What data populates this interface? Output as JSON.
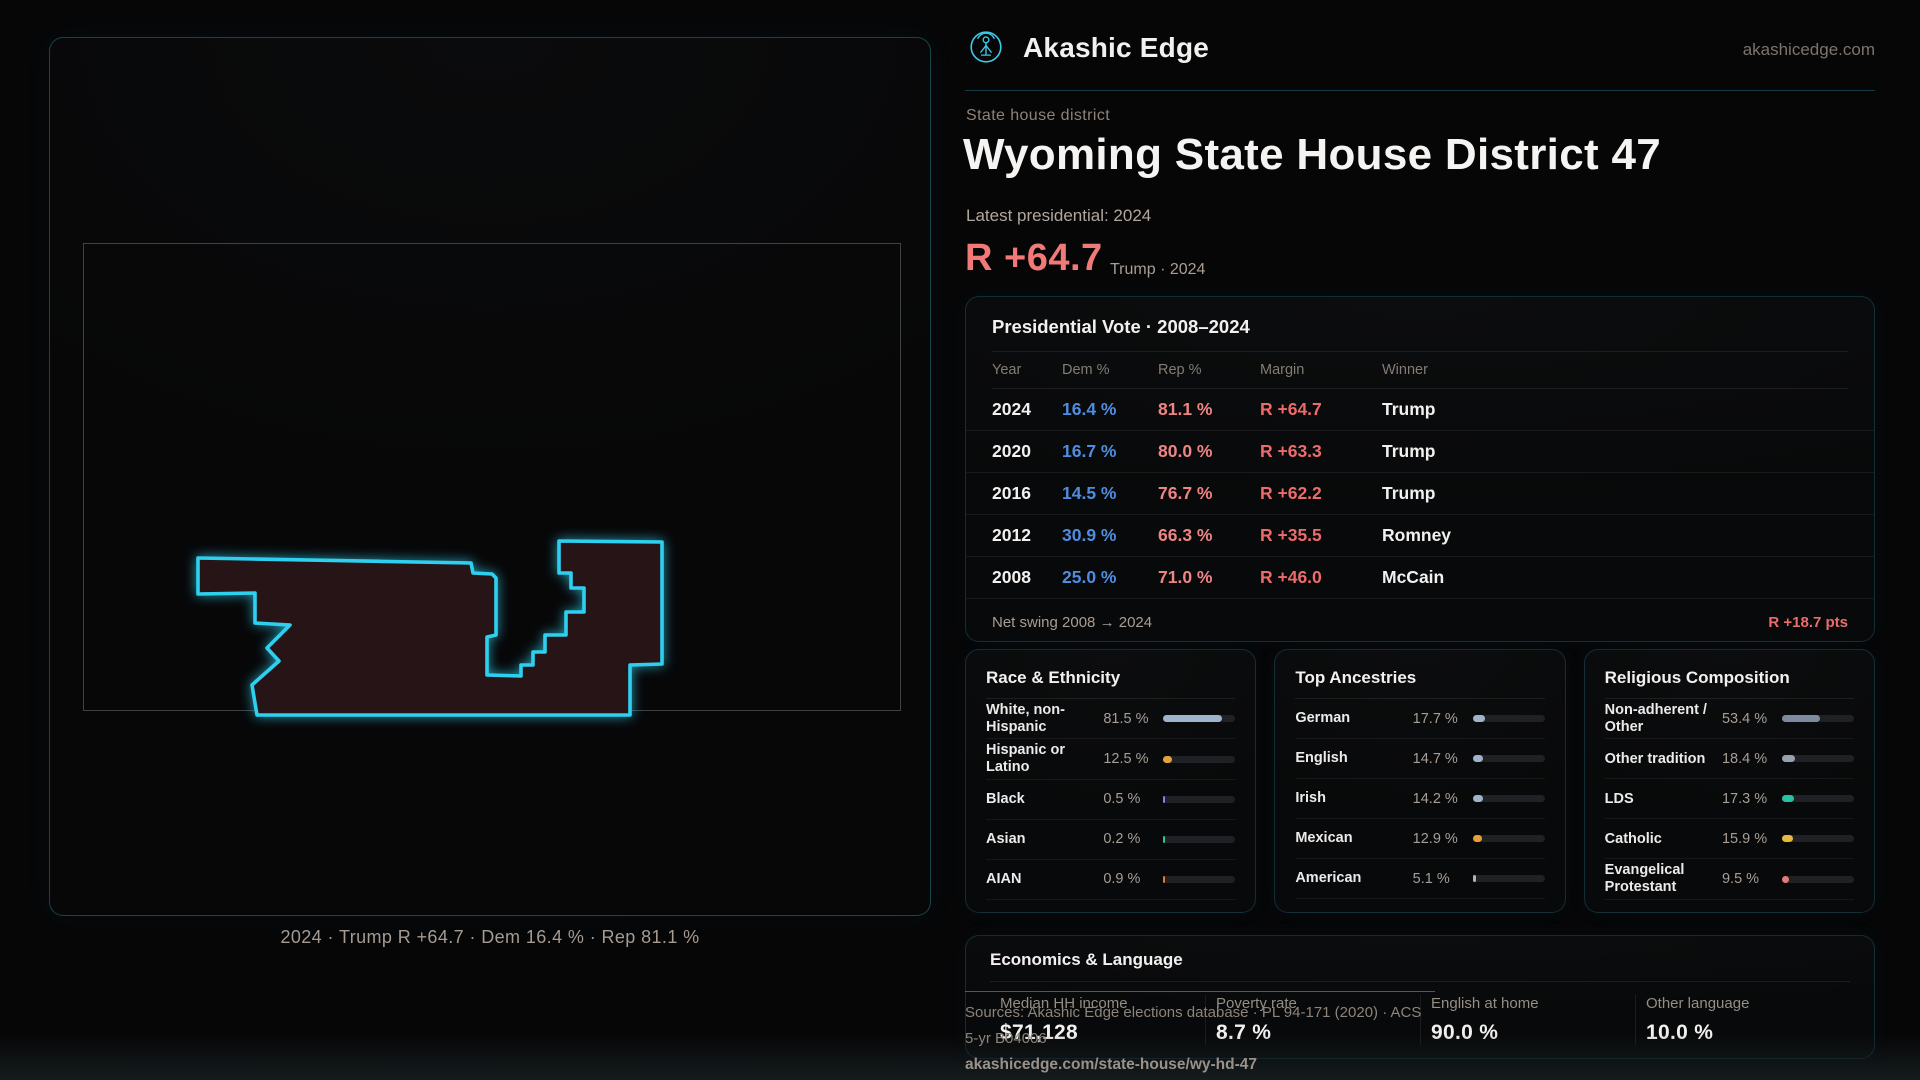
{
  "brand": {
    "name": "Akashic Edge",
    "domain": "akashicedge.com"
  },
  "header": {
    "kicker": "State house district",
    "title": "Wyoming State House District 47",
    "latest": "Latest presidential: 2024",
    "margin": "R +64.7",
    "margin_context": "Trump · 2024"
  },
  "map": {
    "caption": "2024 · Trump R +64.7 · Dem 16.4 % · Rep 81.1 %"
  },
  "vote_table": {
    "title": "Presidential Vote · 2008–2024",
    "columns": [
      "Year",
      "Dem %",
      "Rep %",
      "Margin",
      "Winner"
    ],
    "rows": [
      {
        "year": "2024",
        "dem": "16.4 %",
        "rep": "81.1 %",
        "margin": "R +64.7",
        "winner": "Trump"
      },
      {
        "year": "2020",
        "dem": "16.7 %",
        "rep": "80.0 %",
        "margin": "R +63.3",
        "winner": "Trump"
      },
      {
        "year": "2016",
        "dem": "14.5 %",
        "rep": "76.7 %",
        "margin": "R +62.2",
        "winner": "Trump"
      },
      {
        "year": "2012",
        "dem": "30.9 %",
        "rep": "66.3 %",
        "margin": "R +35.5",
        "winner": "Romney"
      },
      {
        "year": "2008",
        "dem": "25.0 %",
        "rep": "71.0 %",
        "margin": "R +46.0",
        "winner": "McCain"
      }
    ],
    "net_swing_label": "Net swing 2008 → 2024",
    "net_swing_value": "R +18.7 pts"
  },
  "demographics": [
    {
      "key": "race",
      "title": "Race & Ethnicity",
      "items": [
        {
          "label": "White, non-Hispanic",
          "value": "81.5 %",
          "pct": 81.5,
          "color": "#9fb3cb"
        },
        {
          "label": "Hispanic or Latino",
          "value": "12.5 %",
          "pct": 12.5,
          "color": "#e5a23c"
        },
        {
          "label": "Black",
          "value": "0.5 %",
          "pct": 0.5,
          "color": "#8b7cf0"
        },
        {
          "label": "Asian",
          "value": "0.2 %",
          "pct": 0.2,
          "color": "#35c29a"
        },
        {
          "label": "AIAN",
          "value": "0.9 %",
          "pct": 0.9,
          "color": "#e07b35"
        }
      ]
    },
    {
      "key": "ancestries",
      "title": "Top Ancestries",
      "items": [
        {
          "label": "German",
          "value": "17.7 %",
          "pct": 17.7,
          "color": "#9fb3cb"
        },
        {
          "label": "English",
          "value": "14.7 %",
          "pct": 14.7,
          "color": "#9fb3cb"
        },
        {
          "label": "Irish",
          "value": "14.2 %",
          "pct": 14.2,
          "color": "#9fb3cb"
        },
        {
          "label": "Mexican",
          "value": "12.9 %",
          "pct": 12.9,
          "color": "#e5a23c"
        },
        {
          "label": "American",
          "value": "5.1 %",
          "pct": 5.1,
          "color": "#aab3bf"
        }
      ]
    },
    {
      "key": "religion",
      "title": "Religious Composition",
      "items": [
        {
          "label": "Non-adherent / Other",
          "value": "53.4 %",
          "pct": 53.4,
          "color": "#7e8aa0"
        },
        {
          "label": "Other tradition",
          "value": "18.4 %",
          "pct": 18.4,
          "color": "#98a1b0"
        },
        {
          "label": "LDS",
          "value": "17.3 %",
          "pct": 17.3,
          "color": "#27c2a4"
        },
        {
          "label": "Catholic",
          "value": "15.9 %",
          "pct": 15.9,
          "color": "#e6b83e"
        },
        {
          "label": "Evangelical Protestant",
          "value": "9.5 %",
          "pct": 9.5,
          "color": "#e87878"
        }
      ]
    }
  ],
  "economics": {
    "title": "Economics & Language",
    "stats": [
      {
        "label": "Median HH income",
        "value": "$71,128"
      },
      {
        "label": "Poverty rate",
        "value": "8.7 %"
      },
      {
        "label": "English at home",
        "value": "90.0 %"
      },
      {
        "label": "Other language",
        "value": "10.0 %"
      }
    ]
  },
  "footer": {
    "sources": "Sources: Akashic Edge elections database · PL 94-171 (2020) · ACS 5-yr B04006",
    "permalink": "akashicedge.com/state-house/wy-hd-47"
  },
  "colors": {
    "accent_teal": "#2fd0ef",
    "dem_blue": "#4f8de0",
    "rep_red": "#ef8484",
    "margin_red": "#ee6b6b",
    "district_fill": "#261416"
  },
  "chart_data": [
    {
      "type": "table",
      "title": "Presidential Vote · 2008–2024",
      "columns": [
        "Year",
        "Dem %",
        "Rep %",
        "Margin",
        "Winner"
      ],
      "rows": [
        [
          "2024",
          16.4,
          81.1,
          "R +64.7",
          "Trump"
        ],
        [
          "2020",
          16.7,
          80.0,
          "R +63.3",
          "Trump"
        ],
        [
          "2016",
          14.5,
          76.7,
          "R +62.2",
          "Trump"
        ],
        [
          "2012",
          30.9,
          66.3,
          "R +35.5",
          "Romney"
        ],
        [
          "2008",
          25.0,
          71.0,
          "R +46.0",
          "McCain"
        ]
      ]
    },
    {
      "type": "bar",
      "title": "Race & Ethnicity",
      "categories": [
        "White, non-Hispanic",
        "Hispanic or Latino",
        "Black",
        "Asian",
        "AIAN"
      ],
      "values": [
        81.5,
        12.5,
        0.5,
        0.2,
        0.9
      ],
      "xlabel": "",
      "ylabel": "%",
      "ylim": [
        0,
        100
      ]
    },
    {
      "type": "bar",
      "title": "Top Ancestries",
      "categories": [
        "German",
        "English",
        "Irish",
        "Mexican",
        "American"
      ],
      "values": [
        17.7,
        14.7,
        14.2,
        12.9,
        5.1
      ],
      "xlabel": "",
      "ylabel": "%",
      "ylim": [
        0,
        100
      ]
    },
    {
      "type": "bar",
      "title": "Religious Composition",
      "categories": [
        "Non-adherent / Other",
        "Other tradition",
        "LDS",
        "Catholic",
        "Evangelical Protestant"
      ],
      "values": [
        53.4,
        18.4,
        17.3,
        15.9,
        9.5
      ],
      "xlabel": "",
      "ylabel": "%",
      "ylim": [
        0,
        100
      ]
    }
  ]
}
